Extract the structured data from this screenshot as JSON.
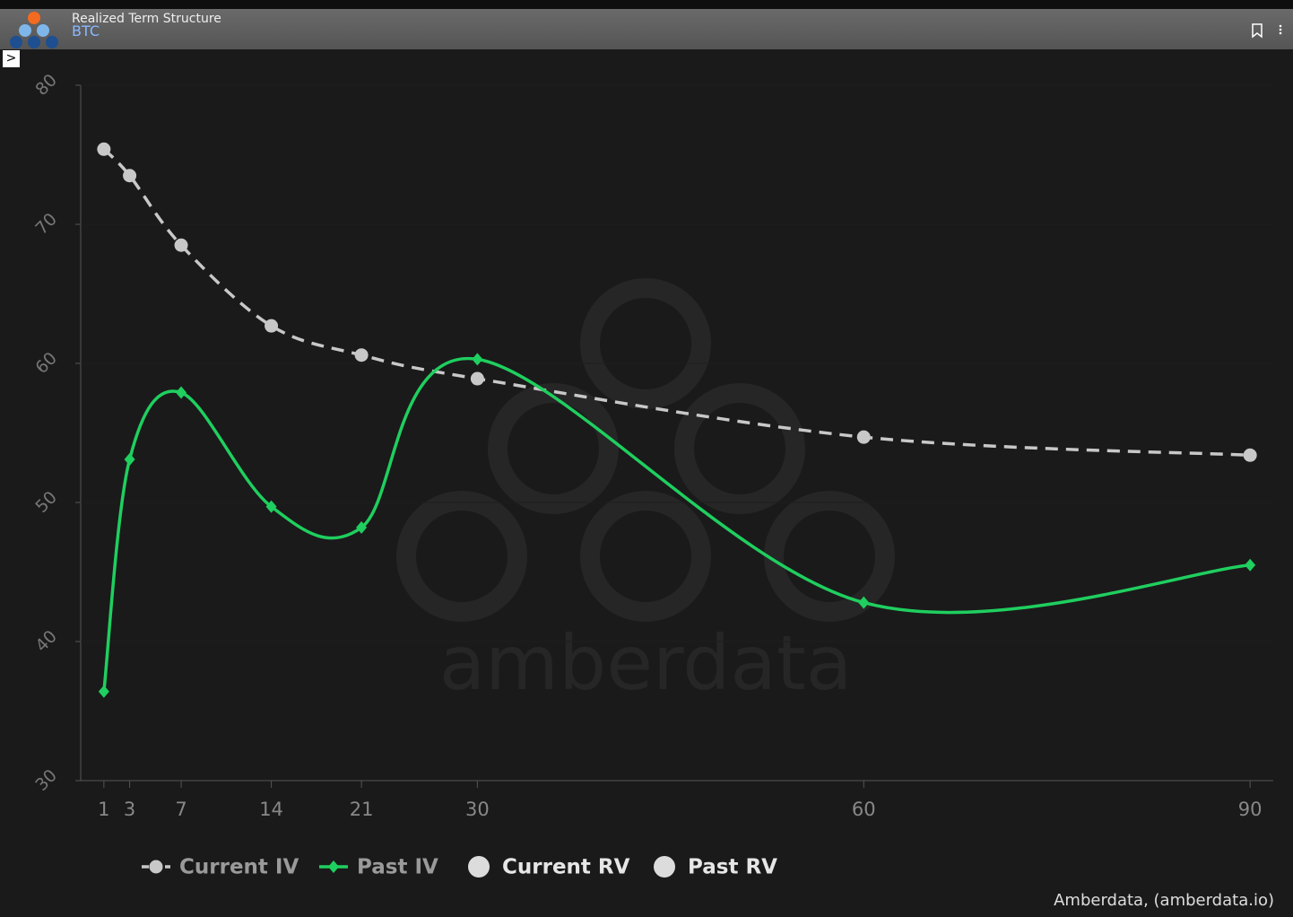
{
  "header": {
    "title": "Realized Term Structure",
    "subtitle": "BTC"
  },
  "chart_data": {
    "type": "line",
    "watermark": "amberdata",
    "credit": "Amberdata, (amberdata.io)",
    "x": [
      1,
      3,
      7,
      14,
      21,
      30,
      60,
      90
    ],
    "xlim": [
      -0.8,
      91.8
    ],
    "xticks": [
      1,
      3,
      7,
      14,
      21,
      30,
      60,
      90
    ],
    "ylim": [
      30,
      80
    ],
    "yticks": [
      30,
      40,
      50,
      60,
      70,
      80
    ],
    "series": [
      {
        "name": "Current IV",
        "color": "#c8c8c8",
        "dashed": true,
        "marker": "circle",
        "values": [
          75.4,
          73.5,
          68.5,
          62.7,
          60.6,
          58.9,
          54.7,
          53.4
        ]
      },
      {
        "name": "Past IV",
        "color": "#1fcf5f",
        "dashed": false,
        "marker": "diamond",
        "values": [
          36.4,
          53.1,
          57.9,
          49.7,
          48.2,
          60.3,
          42.8,
          45.5
        ]
      },
      {
        "name": "Current RV",
        "color": "#dcdcdc",
        "dashed": false,
        "marker": "circle",
        "values": [
          null,
          null,
          null,
          null,
          null,
          null,
          null,
          null
        ]
      },
      {
        "name": "Past RV",
        "color": "#dcdcdc",
        "dashed": false,
        "marker": "circle",
        "values": [
          null,
          null,
          null,
          null,
          null,
          null,
          null,
          null
        ]
      }
    ]
  }
}
